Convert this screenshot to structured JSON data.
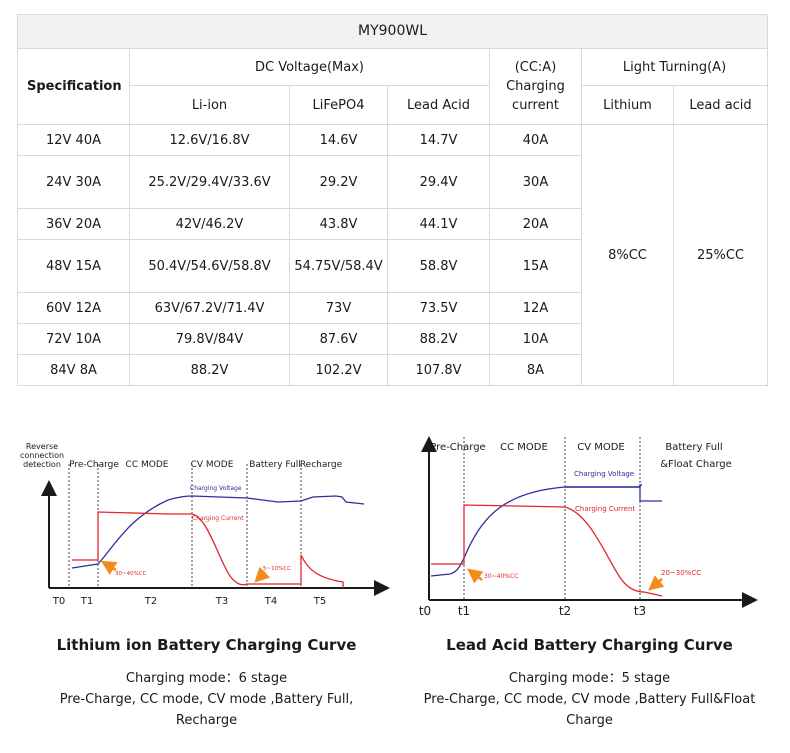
{
  "table": {
    "title": "MY900WL",
    "spec_header": "Specification",
    "dc_voltage_header": "DC Voltage(Max)",
    "charging_current_header": "(CC:A) Charging current",
    "light_turning_header": "Light Turning(A)",
    "col_liion": "Li-ion",
    "col_lifepo4": "LiFePO4",
    "col_lead_acid": "Lead Acid",
    "col_lithium": "Lithium",
    "col_lead_acid2": "Lead acid",
    "lithium_value": "8%CC",
    "lead_value": "25%CC",
    "rows": [
      {
        "spec": "12V 40A",
        "liion": "12.6V/16.8V",
        "lifepo4": "14.6V",
        "lead": "14.7V",
        "current": "40A"
      },
      {
        "spec": "24V 30A",
        "liion": "25.2V/29.4V/33.6V",
        "lifepo4": "29.2V",
        "lead": "29.4V",
        "current": "30A"
      },
      {
        "spec": "36V 20A",
        "liion": "42V/46.2V",
        "lifepo4": "43.8V",
        "lead": "44.1V",
        "current": "20A"
      },
      {
        "spec": "48V 15A",
        "liion": "50.4V/54.6V/58.8V",
        "lifepo4": "54.75V/58.4V",
        "lead": "58.8V",
        "current": "15A"
      },
      {
        "spec": "60V 12A",
        "liion": "63V/67.2V/71.4V",
        "lifepo4": "73V",
        "lead": "73.5V",
        "current": "12A"
      },
      {
        "spec": "72V 10A",
        "liion": "79.8V/84V",
        "lifepo4": "87.6V",
        "lead": "88.2V",
        "current": "10A"
      },
      {
        "spec": "84V 8A",
        "liion": "88.2V",
        "lifepo4": "102.2V",
        "lead": "107.8V",
        "current": "8A"
      }
    ]
  },
  "left_chart": {
    "reverse_label": [
      "Reverse",
      "connection",
      "detection"
    ],
    "stages": [
      "Pre-Charge",
      "CC MODE",
      "CV MODE",
      "Battery Full",
      "Recharge"
    ],
    "voltage_label": "Charging Voltage",
    "current_label": "Charging Current",
    "precharge_note": "30~40%CC",
    "full_note": "5~10%CC",
    "x_ticks": [
      "T0",
      "T1",
      "T2",
      "T3",
      "T4",
      "T5"
    ],
    "title": "Lithium ion Battery Charging Curve",
    "mode_line": "Charging mode：6 stage",
    "desc_line": "Pre-Charge, CC mode, CV mode ,Battery Full, Recharge"
  },
  "right_chart": {
    "stages": [
      "Pre-Charge",
      "CC MODE",
      "CV MODE",
      "Battery Full &Float Charge"
    ],
    "voltage_label": "Charging Voltage",
    "current_label": "Charging Current",
    "precharge_note": "30~40%CC",
    "full_note": "20~30%CC",
    "x_ticks": [
      "t0",
      "t1",
      "t2",
      "t3"
    ],
    "title": "Lead Acid Battery Charging Curve",
    "mode_line": "Charging mode：5 stage",
    "desc_line": "Pre-Charge, CC mode, CV mode ,Battery Full&Float Charge"
  },
  "colors": {
    "voltage": "#2b2f9b",
    "current": "#e0262b",
    "arrow": "#f28c1c",
    "grid": "#d9d9d9"
  }
}
